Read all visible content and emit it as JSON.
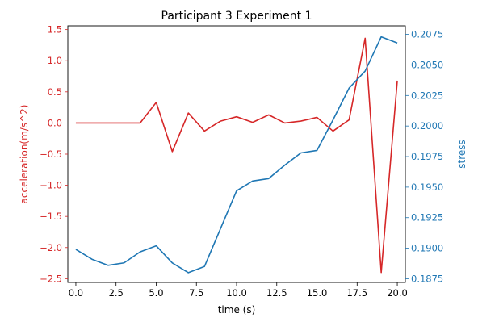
{
  "chart_data": {
    "type": "line",
    "title": "Participant 3 Experiment 1",
    "xlabel": "time (s)",
    "ylabel_left": "acceleration(m/s^2)",
    "ylabel_right": "stress",
    "xlim": [
      -0.5,
      20.5
    ],
    "ylim_left": [
      -2.56,
      1.56
    ],
    "ylim_right": [
      0.1872,
      0.2082
    ],
    "xticks": [
      0.0,
      2.5,
      5.0,
      7.5,
      10.0,
      12.5,
      15.0,
      17.5,
      20.0
    ],
    "xtick_labels": [
      "0.0",
      "2.5",
      "5.0",
      "7.5",
      "10.0",
      "12.5",
      "15.0",
      "17.5",
      "20.0"
    ],
    "yticks_left": [
      1.5,
      1.0,
      0.5,
      0.0,
      -0.5,
      -1.0,
      -1.5,
      -2.0,
      -2.5
    ],
    "ytick_labels_left": [
      "1.5",
      "1.0",
      "0.5",
      "0.0",
      "−0.5",
      "−1.0",
      "−1.5",
      "−2.0",
      "−2.5"
    ],
    "yticks_right": [
      0.2075,
      0.205,
      0.2025,
      0.2,
      0.1975,
      0.195,
      0.1925,
      0.19,
      0.1875
    ],
    "ytick_labels_right": [
      "0.2075",
      "0.2050",
      "0.2025",
      "0.2000",
      "0.1975",
      "0.1950",
      "0.1925",
      "0.1900",
      "0.1875"
    ],
    "grid": false,
    "series": [
      {
        "axis": "left",
        "color": "#d62728",
        "x": [
          0,
          1,
          2,
          3,
          4,
          5,
          6,
          7,
          8,
          9,
          10,
          11,
          12,
          13,
          14,
          15,
          16,
          17,
          18,
          19,
          20
        ],
        "values": [
          0.0,
          0.0,
          0.0,
          0.0,
          0.0,
          0.33,
          -0.46,
          0.16,
          -0.13,
          0.03,
          0.1,
          0.01,
          0.13,
          0.0,
          0.03,
          0.09,
          -0.13,
          0.05,
          1.36,
          -2.4,
          0.68
        ]
      },
      {
        "axis": "right",
        "color": "#1f77b4",
        "x": [
          0,
          1,
          2,
          3,
          4,
          5,
          6,
          7,
          8,
          9,
          10,
          11,
          12,
          13,
          14,
          15,
          16,
          17,
          18,
          19,
          20
        ],
        "values": [
          0.1899,
          0.1891,
          0.1886,
          0.1888,
          0.1897,
          0.1902,
          0.1888,
          0.188,
          0.1885,
          0.1916,
          0.1947,
          0.1955,
          0.1957,
          0.1968,
          0.1978,
          0.198,
          0.2005,
          0.2031,
          0.2045,
          0.2073,
          0.2068
        ]
      }
    ]
  }
}
